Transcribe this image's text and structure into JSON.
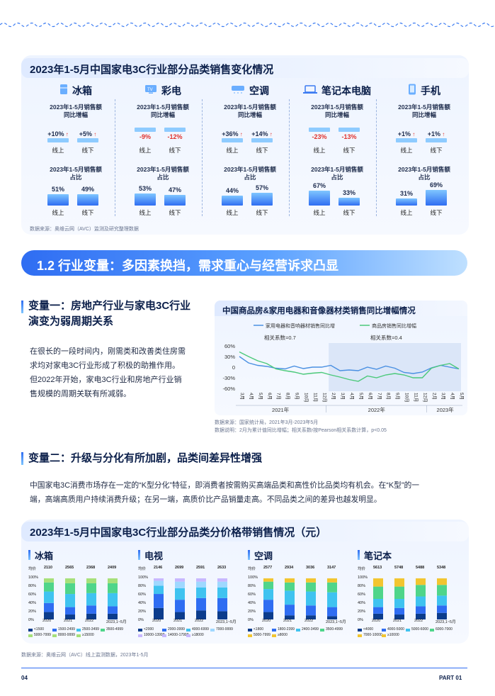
{
  "section1": {
    "title": "2023年1-5月中国家电3C行业部分品类销售变化情况",
    "growth_title": "2023年1-5月销售额\n同比增幅",
    "share_title": "2023年1-5月销售额\n占比",
    "online": "线上",
    "offline": "线下",
    "categories": [
      {
        "name": "冰箱",
        "icon": "fridge-icon",
        "growth": [
          "+10%",
          "+5%"
        ],
        "growth_up": [
          true,
          true
        ],
        "share": [
          "51%",
          "49%"
        ],
        "share_values": [
          51,
          49
        ]
      },
      {
        "name": "彩电",
        "icon": "tv-icon",
        "growth": [
          "-9%",
          "-12%"
        ],
        "growth_up": [
          false,
          false
        ],
        "share": [
          "53%",
          "47%"
        ],
        "share_values": [
          53,
          47
        ]
      },
      {
        "name": "空调",
        "icon": "ac-icon",
        "growth": [
          "+36%",
          "+14%"
        ],
        "growth_up": [
          true,
          true
        ],
        "share": [
          "44%",
          "57%"
        ],
        "share_values": [
          44,
          57
        ]
      },
      {
        "name": "笔记本电脑",
        "icon": "laptop-icon",
        "growth": [
          "-23%",
          "-13%"
        ],
        "growth_up": [
          false,
          false
        ],
        "share": [
          "67%",
          "33%"
        ],
        "share_values": [
          67,
          33
        ]
      },
      {
        "name": "手机",
        "icon": "phone-icon",
        "growth": [
          "+1%",
          "+1%"
        ],
        "growth_up": [
          true,
          true
        ],
        "share": [
          "31%",
          "69%"
        ],
        "share_values": [
          31,
          69
        ]
      }
    ],
    "source": "数据来源：奥维云网（AVC）监测及研究整理数据"
  },
  "banner": "1.2 行业变量：多因素换挡，需求重心与经营诉求凸显",
  "var1": {
    "title_line1": "变量一：房地产行业与家电3C行业",
    "title_line2": "演变为弱周期关系",
    "para_lines": [
      "在很长的一段时间内，刚需类和改善类住房需",
      "求均对家电3C行业形成了积极的助推作用。",
      "但2022年开始，家电3C行业和房地产行业销",
      "售规模的周期关联有所减弱。"
    ]
  },
  "line_chart": {
    "card_title": "中国商品房&家用电器和音像器材类销售同比增幅情况",
    "source_line1": "数据来源：国家统计局，2021年3月-2023年5月",
    "source_line2": "数据说明：2月为累计值同比增幅；相关系数r按Pearson相关系数计算，p<0.05"
  },
  "chart_data": {
    "type": "line",
    "title": "中国商品房&家用电器和音像器材类销售同比增幅情况",
    "x": [
      "3月",
      "4月",
      "5月",
      "6月",
      "7月",
      "8月",
      "9月",
      "10月",
      "11月",
      "12月",
      "2月",
      "3月",
      "4月",
      "5月",
      "6月",
      "7月",
      "8月",
      "9月",
      "10月",
      "11月",
      "12月",
      "2月",
      "3月",
      "4月",
      "5月"
    ],
    "year_labels": [
      "2021年",
      "2022年",
      "2023年"
    ],
    "ylim": [
      -60,
      60
    ],
    "yticks": [
      "60%",
      "30%",
      "0",
      "-30%",
      "-60%"
    ],
    "annotations": [
      "相关系数=0.7",
      "相关系数=0.4"
    ],
    "series": [
      {
        "name": "家用电器和音响器材销售同比增",
        "color": "#4a90e2",
        "values": [
          30,
          12,
          5,
          2,
          -3,
          -5,
          3,
          -4,
          0,
          0,
          5,
          -10,
          -8,
          -10,
          0,
          -6,
          3,
          -3,
          -15,
          -18,
          -14,
          -2,
          5,
          0,
          -5
        ]
      },
      {
        "name": "商品房销售同比增幅",
        "color": "#4bc97a",
        "values": [
          43,
          30,
          18,
          10,
          -5,
          -10,
          -14,
          -20,
          -17,
          -15,
          -22,
          -28,
          -35,
          -40,
          -25,
          -30,
          -22,
          -18,
          -22,
          -30,
          -30,
          -3,
          5,
          10,
          -5
        ]
      }
    ],
    "grid": false
  },
  "var2": {
    "title": "变量二：升级与分化有所加剧，品类间差异性增强",
    "para_line1": "中国家电3C消费市场存在一定的“K型分化”特征，即消费者按需购买高端品类和高性价比品类均有机会。在“K型”的一",
    "para_line2": "端，高端高质用户持续消费升级；在另一端，高质价比产品销量走高。不同品类之间的差异也越发明显。"
  },
  "price_band": {
    "title": "2023年1-5月中国家电3C行业部分品类分价格带销售情况（元）",
    "source": "数据来源：奥维云网（AVC）线上监测数据，2023年1-5月",
    "price_label": "均价",
    "yticks": [
      "100%",
      "80%",
      "60%",
      "40%",
      "20%",
      "0%"
    ],
    "years": [
      "2020",
      "2021",
      "2022",
      "2023,1~5月"
    ],
    "panels": [
      {
        "name": "冰箱",
        "prices": [
          "2110",
          "2565",
          "2368",
          "2409"
        ],
        "colors": [
          "#0b3c8c",
          "#2f6df2",
          "#3fc3f0",
          "#4fd58a",
          "#a6e07a"
        ],
        "legend": [
          "<1500",
          "1500-2499",
          "2500-3499",
          "3500-4999",
          "5000-7999",
          "8000-9999",
          "≥15000"
        ]
      },
      {
        "name": "电视",
        "prices": [
          "2146",
          "2699",
          "2591",
          "2633"
        ],
        "colors": [
          "#0b3c8c",
          "#2f6df2",
          "#3fc3f0",
          "#9fd8ff",
          "#c8b8ff"
        ],
        "legend": [
          "<2000",
          "2000-3999",
          "4000-6999",
          "7000-9999",
          "10000-13999",
          "14000-17999",
          "≥18000"
        ]
      },
      {
        "name": "空调",
        "prices": [
          "2577",
          "2934",
          "3036",
          "3147"
        ],
        "colors": [
          "#0b3c8c",
          "#2f6df2",
          "#3fc3f0",
          "#4fd58a",
          "#f2c530"
        ],
        "legend": [
          "<1800",
          "1800-2399",
          "2400-3499",
          "3500-4999",
          "5000-7999",
          "≥8000"
        ]
      },
      {
        "name": "笔记本",
        "prices": [
          "5613",
          "5748",
          "5488",
          "5348"
        ],
        "colors": [
          "#0b3c8c",
          "#2f6df2",
          "#3fc3f0",
          "#4fd58a",
          "#f2c530"
        ],
        "legend": [
          "<4000",
          "4000-5000",
          "5000-6000",
          "6000-7000",
          "7000-10000",
          "≥10000"
        ]
      }
    ]
  },
  "footer": {
    "page": "04",
    "part": "PART 01"
  }
}
